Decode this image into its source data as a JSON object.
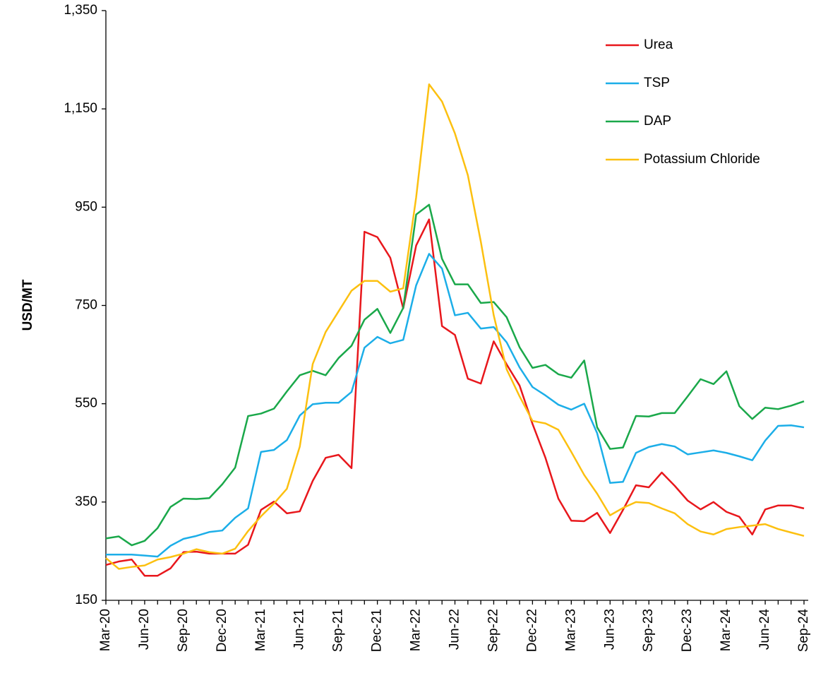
{
  "chart_data": {
    "type": "line",
    "y_label": "USD/MT",
    "categories": [
      "Mar-20",
      null,
      null,
      "Jun-20",
      null,
      null,
      "Sep-20",
      null,
      null,
      "Dec-20",
      null,
      null,
      "Mar-21",
      null,
      null,
      "Jun-21",
      null,
      null,
      "Sep-21",
      null,
      null,
      "Dec-21",
      null,
      null,
      "Mar-22",
      null,
      null,
      "Jun-22",
      null,
      null,
      "Sep-22",
      null,
      null,
      "Dec-22",
      null,
      null,
      "Mar-23",
      null,
      null,
      "Jun-23",
      null,
      null,
      "Sep-23",
      null,
      null,
      "Dec-23",
      null,
      null,
      "Mar-24",
      null,
      null,
      "Jun-24",
      null,
      null,
      "Sep-24"
    ],
    "series": [
      {
        "name": "Urea",
        "color": "#e8171c",
        "values": [
          222,
          229,
          233,
          200,
          200,
          215,
          248,
          249,
          245,
          245,
          245,
          263,
          334,
          351,
          327,
          331,
          393,
          440,
          446,
          419,
          900,
          889,
          847,
          744,
          872,
          925,
          708,
          690,
          601,
          591,
          677,
          630,
          587,
          509,
          440,
          357,
          312,
          311,
          328,
          287,
          334,
          384,
          380,
          410,
          383,
          353,
          335,
          350,
          330,
          320,
          284,
          335,
          343,
          343,
          337
        ]
      },
      {
        "name": "TSP",
        "color": "#1caee8",
        "values": [
          243,
          243,
          243,
          241,
          239,
          261,
          275,
          281,
          289,
          292,
          318,
          337,
          452,
          456,
          476,
          526,
          549,
          552,
          552,
          574,
          664,
          686,
          673,
          680,
          791,
          855,
          825,
          730,
          735,
          703,
          706,
          675,
          624,
          584,
          567,
          548,
          538,
          550,
          490,
          389,
          391,
          450,
          462,
          468,
          463,
          447,
          451,
          455,
          450,
          443,
          435,
          475,
          505,
          506,
          502
        ]
      },
      {
        "name": "DAP",
        "color": "#1aa84a",
        "values": [
          276,
          280,
          262,
          271,
          297,
          340,
          357,
          356,
          358,
          386,
          420,
          525,
          530,
          540,
          575,
          608,
          617,
          608,
          643,
          668,
          721,
          743,
          694,
          745,
          935,
          955,
          845,
          793,
          793,
          755,
          757,
          726,
          665,
          623,
          629,
          610,
          603,
          638,
          502,
          458,
          461,
          525,
          524,
          531,
          531,
          565,
          600,
          590,
          616,
          545,
          519,
          542,
          539,
          546,
          555
        ]
      },
      {
        "name": "Potassium Chloride",
        "color": "#fcc010",
        "values": [
          236,
          214,
          218,
          221,
          233,
          238,
          245,
          254,
          248,
          245,
          255,
          291,
          321,
          347,
          377,
          463,
          631,
          696,
          738,
          780,
          800,
          800,
          778,
          785,
          970,
          1200,
          1165,
          1100,
          1015,
          880,
          730,
          620,
          565,
          515,
          510,
          497,
          452,
          405,
          367,
          323,
          338,
          350,
          348,
          337,
          327,
          305,
          290,
          284,
          295,
          299,
          302,
          305,
          295,
          288,
          281
        ]
      }
    ],
    "ylim": [
      150,
      1350
    ],
    "yticks": [
      150,
      350,
      550,
      750,
      950,
      {
        "value": 1150,
        "label": "1,150"
      },
      {
        "value": 1350,
        "label": "1,350"
      }
    ],
    "grid": false,
    "legend": "top-right"
  }
}
